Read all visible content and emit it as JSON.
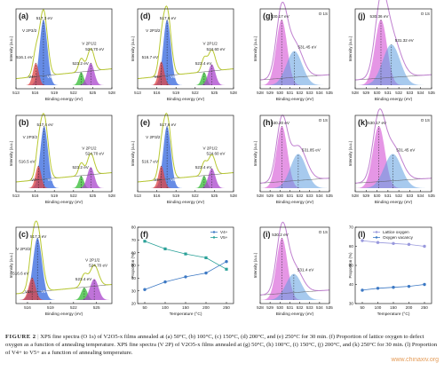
{
  "colors": {
    "envelope": "#b8c832",
    "raw": "#555555",
    "v5_fill": "#3366dd",
    "v4_fill": "#dd4444",
    "v3_fill": "#33bb33",
    "v2p12_fill": "#aa44cc",
    "lattice_fill": "#d040d0",
    "vacancy_fill": "#5f9fe0",
    "line_v4": "#3d79c4",
    "line_v5": "#2aa198"
  },
  "chart_data": [
    {
      "id": "a",
      "label": "(a)",
      "type": "area",
      "xlabel": "Binding energy (eV)",
      "ylabel": "Intensity (a.u.)",
      "x_ticks": [
        "513",
        "516",
        "519",
        "522",
        "525",
        "528"
      ],
      "peaks": [
        {
          "name": "V2P3/2 V5+",
          "center": 517.3,
          "height": 1.0
        },
        {
          "name": "V4+",
          "center": 516.1,
          "height": 0.34
        },
        {
          "name": "V3+",
          "center": 523.2,
          "height": 0.2
        },
        {
          "name": "V2P1/2",
          "center": 524.7,
          "height": 0.34
        }
      ],
      "annotations": [
        "517.3 eV",
        "V 2P3/2",
        "516.1 eV",
        "V5+",
        "V4+",
        "V 2P1/2",
        "524.70 eV",
        "523.2 eV",
        "V5+",
        "V4+"
      ]
    },
    {
      "id": "b",
      "label": "(b)",
      "type": "area",
      "xlabel": "Binding energy (eV)",
      "ylabel": "Intensity (a.u.)",
      "x_ticks": [
        "513",
        "516",
        "519",
        "522",
        "525",
        "528"
      ],
      "peaks": [
        {
          "name": "V2P3/2 V5+",
          "center": 517.4,
          "height": 1.0
        },
        {
          "name": "V4+",
          "center": 516.5,
          "height": 0.36
        },
        {
          "name": "V3+",
          "center": 523.2,
          "height": 0.2
        },
        {
          "name": "V2P1/2",
          "center": 524.7,
          "height": 0.34
        }
      ],
      "annotations": [
        "517.4 eV",
        "V 2P3/2",
        "516.5 eV",
        "V5+",
        "V4+",
        "V 2P1/2",
        "524.70 eV",
        "523.2 eV",
        "V5+"
      ]
    },
    {
      "id": "c",
      "label": "(c)",
      "type": "area",
      "xlabel": "Binding energy (eV)",
      "ylabel": "Intensity (a.u.)",
      "x_ticks": [
        "516",
        "519",
        "522",
        "525"
      ],
      "peaks": [
        {
          "name": "V2P3/2 V5+",
          "center": 517.3,
          "height": 1.0
        },
        {
          "name": "V4+",
          "center": 516.6,
          "height": 0.36
        },
        {
          "name": "V3+",
          "center": 523.4,
          "height": 0.2
        },
        {
          "name": "V2P1/2",
          "center": 524.7,
          "height": 0.34
        }
      ],
      "annotations": [
        "V 2P3/2",
        "517.3 eV",
        "516.6 eV",
        "V5+",
        "V4+",
        "V 2P1/2",
        "524.70 eV",
        "523.4 eV",
        "V5+",
        "V4+"
      ]
    },
    {
      "id": "d",
      "label": "(d)",
      "type": "area",
      "xlabel": "Binding energy (eV)",
      "ylabel": "Intensity (a.u.)",
      "x_ticks": [
        "513",
        "516",
        "519",
        "522",
        "525",
        "528"
      ],
      "peaks": [
        {
          "name": "V2P3/2 V5+",
          "center": 517.6,
          "height": 1.0
        },
        {
          "name": "V4+",
          "center": 516.7,
          "height": 0.36
        },
        {
          "name": "V3+",
          "center": 523.4,
          "height": 0.2
        },
        {
          "name": "V2P1/2",
          "center": 524.6,
          "height": 0.32
        }
      ],
      "annotations": [
        "517.6 eV",
        "V 2P3/2",
        "516.7 eV",
        "V5+",
        "V4+",
        "V 2P1/2",
        "524.60 eV",
        "523.4 eV",
        "V5+"
      ]
    },
    {
      "id": "e",
      "label": "(e)",
      "type": "area",
      "xlabel": "Binding energy (eV)",
      "ylabel": "Intensity (a.u.)",
      "x_ticks": [
        "513",
        "516",
        "519",
        "522",
        "525",
        "528"
      ],
      "peaks": [
        {
          "name": "V2P3/2 V5+",
          "center": 517.6,
          "height": 1.0
        },
        {
          "name": "V4+",
          "center": 516.7,
          "height": 0.36
        },
        {
          "name": "V3+",
          "center": 523.4,
          "height": 0.2
        },
        {
          "name": "V2P1/2",
          "center": 524.6,
          "height": 0.32
        }
      ],
      "annotations": [
        "517.6 eV",
        "V 2P3/2",
        "516.7 eV",
        "V5+",
        "V4+",
        "V 2P1/2",
        "524.60 eV",
        "523.4 eV",
        "V5+"
      ]
    },
    {
      "id": "f",
      "label": "(f)",
      "type": "line",
      "xlabel": "Temperature (°C)",
      "ylabel": "Proportion (%)",
      "xlim": [
        50,
        250
      ],
      "ylim": [
        20,
        80
      ],
      "x_ticks": [
        50,
        100,
        150,
        200,
        250
      ],
      "y_ticks": [
        20,
        30,
        40,
        50,
        60,
        70,
        80
      ],
      "x": [
        50,
        100,
        150,
        200,
        250
      ],
      "series": [
        {
          "name": "V4+",
          "values": [
            31,
            37,
            41,
            44,
            53
          ]
        },
        {
          "name": "V5+",
          "values": [
            69,
            63,
            59,
            56,
            47
          ]
        }
      ],
      "legend": "top-right"
    },
    {
      "id": "g",
      "label": "(g)",
      "type": "area",
      "xlabel": "Binding energy (eV)",
      "ylabel": "Intensity (a.u.)",
      "x_ticks": [
        "528",
        "529",
        "530",
        "531",
        "532",
        "533",
        "534",
        "535"
      ],
      "corner_text": "O 1S",
      "peaks": [
        {
          "name": "Lattice oxygen",
          "center": 530.17,
          "height": 1.0
        },
        {
          "name": "Oxygen vacancy",
          "center": 531.45,
          "height": 0.52
        }
      ],
      "annotations": [
        "530.17 eV",
        "531.45 eV"
      ]
    },
    {
      "id": "h",
      "label": "(h)",
      "type": "area",
      "xlabel": "Binding energy (eV)",
      "ylabel": "Intensity (a.u.)",
      "x_ticks": [
        "528",
        "529",
        "530",
        "531",
        "532",
        "533",
        "534",
        "535"
      ],
      "corner_text": "O 1S",
      "peaks": [
        {
          "name": "Lattice oxygen",
          "center": 530.2,
          "height": 1.0
        },
        {
          "name": "Oxygen vacancy",
          "center": 531.85,
          "height": 0.55
        }
      ],
      "annotations": [
        "530.20 eV",
        "531.85 eV"
      ]
    },
    {
      "id": "i",
      "label": "(i)",
      "type": "area",
      "xlabel": "Binding energy (eV)",
      "ylabel": "Intensity (a.u.)",
      "x_ticks": [
        "528",
        "529",
        "530",
        "531",
        "532",
        "533",
        "534",
        "535"
      ],
      "corner_text": "O 1S",
      "peaks": [
        {
          "name": "Lattice oxygen",
          "center": 530.2,
          "height": 1.0
        },
        {
          "name": "Oxygen vacancy",
          "center": 531.4,
          "height": 0.42
        }
      ],
      "annotations": [
        "530.2 eV",
        "531.4 eV"
      ]
    },
    {
      "id": "j",
      "label": "(j)",
      "type": "area",
      "xlabel": "Binding energy (eV)",
      "ylabel": "Intensity (a.u.)",
      "x_ticks": [
        "528",
        "529",
        "530",
        "531",
        "532",
        "533",
        "534",
        "535"
      ],
      "corner_text": "O 1S",
      "peaks": [
        {
          "name": "Lattice oxygen",
          "center": 530.36,
          "height": 1.0
        },
        {
          "name": "Oxygen vacancy",
          "center": 531.32,
          "height": 0.62
        }
      ],
      "annotations": [
        "530.36 eV",
        "531.32 eV"
      ]
    },
    {
      "id": "k",
      "label": "(k)",
      "type": "area",
      "xlabel": "Binding energy (eV)",
      "ylabel": "Intensity (a.u.)",
      "x_ticks": [
        "528",
        "529",
        "530",
        "531",
        "532",
        "533",
        "534",
        "535"
      ],
      "corner_text": "O 1S",
      "peaks": [
        {
          "name": "Lattice oxygen",
          "center": 530.17,
          "height": 1.0
        },
        {
          "name": "Oxygen vacancy",
          "center": 531.45,
          "height": 0.55
        }
      ],
      "annotations": [
        "530.17 eV",
        "531.45 eV"
      ]
    },
    {
      "id": "l",
      "label": "(l)",
      "type": "line",
      "xlabel": "Temperature (°C)",
      "ylabel": "Proportion (%)",
      "xlim": [
        50,
        250
      ],
      "ylim": [
        30,
        70
      ],
      "x_ticks": [
        50,
        100,
        150,
        200,
        250
      ],
      "y_ticks": [
        30,
        40,
        50,
        60,
        70
      ],
      "x": [
        50,
        100,
        150,
        200,
        250
      ],
      "series": [
        {
          "name": "Lattice oxygen",
          "values": [
            63,
            62,
            61.5,
            61,
            60
          ]
        },
        {
          "name": "Oxygen vacancy",
          "values": [
            37,
            38,
            38.5,
            39,
            40
          ]
        }
      ],
      "legend": "top"
    }
  ],
  "caption": {
    "label": "FIGURE 2",
    "mark": "|",
    "text": "XPS fine spectra (O 1s) of V2O5-x films annealed at (a) 50°C, (b) 100°C, (c) 150°C, (d) 200°C, and (e) 250°C for 30 min. (f) Proportion of lattice oxygen to defect oxygen as a function of annealing temperature. XPS fine spectra (V 2P) of V2O5-x films annealed at (g) 50°C, (h) 100°C, (i) 150°C, (j) 200°C, and (k) 250°C for 30 min. (l) Proportion of V4+ to V5+ as a function of annealing temperature."
  },
  "watermark": "www.chinaxiv.org"
}
